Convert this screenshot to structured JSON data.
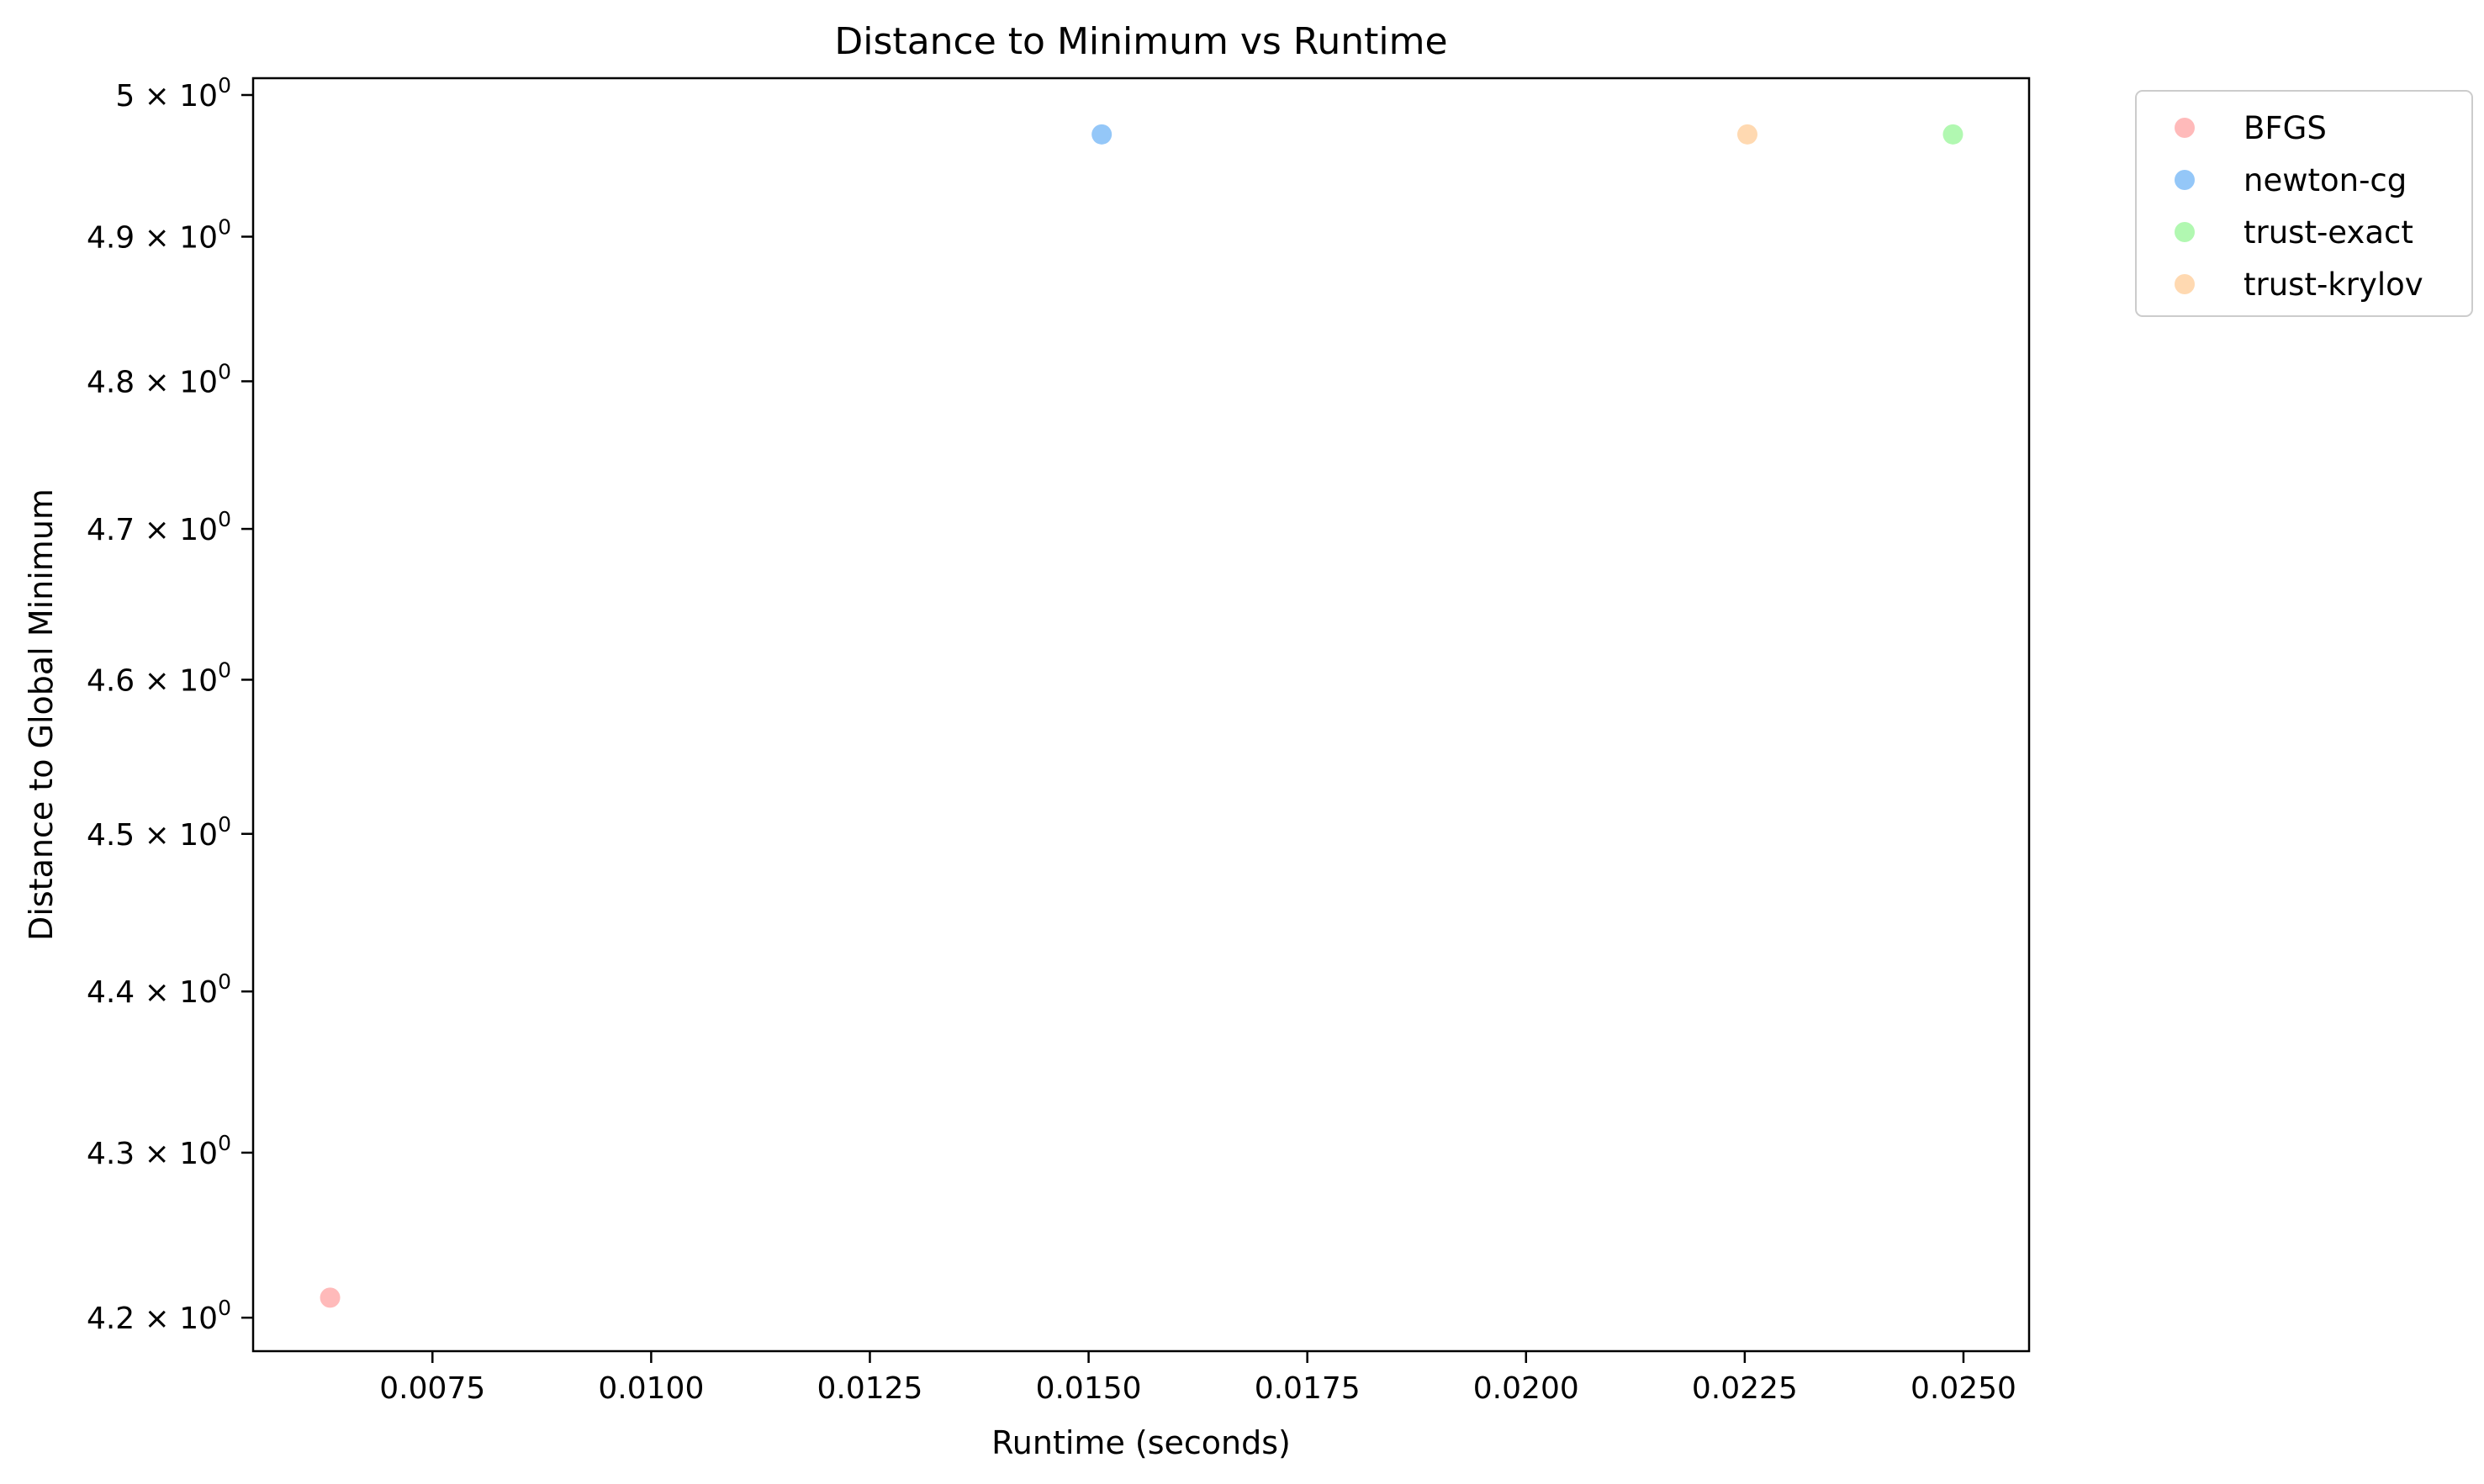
{
  "chart_data": {
    "type": "scatter",
    "title": "Distance to Minimum vs Runtime",
    "xlabel": "Runtime (seconds)",
    "ylabel": "Distance to Global Minimum",
    "yscale": "log",
    "xlim": [
      0.00545,
      0.02575
    ],
    "ylim": [
      4.18,
      5.012
    ],
    "grid": false,
    "legend_position": "outside-top-right",
    "x_ticks": [
      {
        "value": 0.0075,
        "label": "0.0075"
      },
      {
        "value": 0.01,
        "label": "0.0100"
      },
      {
        "value": 0.0125,
        "label": "0.0125"
      },
      {
        "value": 0.015,
        "label": "0.0150"
      },
      {
        "value": 0.0175,
        "label": "0.0175"
      },
      {
        "value": 0.02,
        "label": "0.0200"
      },
      {
        "value": 0.0225,
        "label": "0.0225"
      },
      {
        "value": 0.025,
        "label": "0.0250"
      }
    ],
    "y_ticks": [
      {
        "value": 4.2,
        "mantissa": "4.2"
      },
      {
        "value": 4.3,
        "mantissa": "4.3"
      },
      {
        "value": 4.4,
        "mantissa": "4.4"
      },
      {
        "value": 4.5,
        "mantissa": "4.5"
      },
      {
        "value": 4.6,
        "mantissa": "4.6"
      },
      {
        "value": 4.7,
        "mantissa": "4.7"
      },
      {
        "value": 4.8,
        "mantissa": "4.8"
      },
      {
        "value": 4.9,
        "mantissa": "4.9"
      },
      {
        "value": 5.0,
        "mantissa": "5"
      }
    ],
    "y_tick_base": "10",
    "y_tick_exponent": "0",
    "series": [
      {
        "name": "BFGS",
        "color": "#ffb3b3",
        "points": [
          {
            "x": 0.00633,
            "y": 4.212
          }
        ]
      },
      {
        "name": "newton-cg",
        "color": "#88c1f7",
        "points": [
          {
            "x": 0.01515,
            "y": 4.972
          }
        ]
      },
      {
        "name": "trust-exact",
        "color": "#a8f7a8",
        "points": [
          {
            "x": 0.02488,
            "y": 4.972
          }
        ]
      },
      {
        "name": "trust-krylov",
        "color": "#ffd5a8",
        "points": [
          {
            "x": 0.02253,
            "y": 4.972
          }
        ]
      }
    ]
  }
}
